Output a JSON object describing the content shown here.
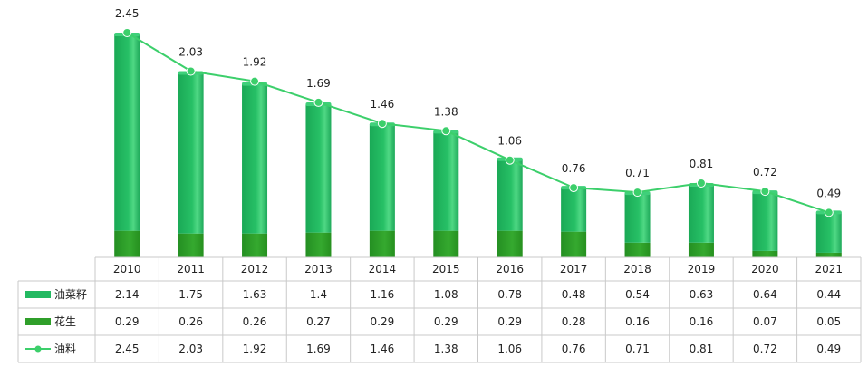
{
  "colors": {
    "rapeseed": "#23b961",
    "peanut": "#2f9f2a",
    "oil_line": "#3ccf6b",
    "grid": "#c9c9c9"
  },
  "chart_data": {
    "type": "bar",
    "stacked": true,
    "categories": [
      "2010",
      "2011",
      "2012",
      "2013",
      "2014",
      "2015",
      "2016",
      "2017",
      "2018",
      "2019",
      "2020",
      "2021"
    ],
    "series": [
      {
        "name": "油菜籽",
        "type": "bar",
        "values": [
          2.14,
          1.75,
          1.63,
          1.4,
          1.16,
          1.08,
          0.78,
          0.48,
          0.54,
          0.63,
          0.64,
          0.44
        ]
      },
      {
        "name": "花生",
        "type": "bar",
        "values": [
          0.29,
          0.26,
          0.26,
          0.27,
          0.29,
          0.29,
          0.29,
          0.28,
          0.16,
          0.16,
          0.07,
          0.05
        ]
      },
      {
        "name": "油料",
        "type": "line",
        "values": [
          2.45,
          2.03,
          1.92,
          1.69,
          1.46,
          1.38,
          1.06,
          0.76,
          0.71,
          0.81,
          0.72,
          0.49
        ]
      }
    ],
    "line_labels": [
      "2.45",
      "2.03",
      "1.92",
      "1.69",
      "1.46",
      "1.38",
      "1.06",
      "0.76",
      "0.71",
      "0.81",
      "0.72",
      "0.49"
    ],
    "table_rows": [
      {
        "name": "油菜籽",
        "cells": [
          "2.14",
          "1.75",
          "1.63",
          "1.4",
          "1.16",
          "1.08",
          "0.78",
          "0.48",
          "0.54",
          "0.63",
          "0.64",
          "0.44"
        ]
      },
      {
        "name": "花生",
        "cells": [
          "0.29",
          "0.26",
          "0.26",
          "0.27",
          "0.29",
          "0.29",
          "0.29",
          "0.28",
          "0.16",
          "0.16",
          "0.07",
          "0.05"
        ]
      },
      {
        "name": "油料",
        "cells": [
          "2.45",
          "2.03",
          "1.92",
          "1.69",
          "1.46",
          "1.38",
          "1.06",
          "0.76",
          "0.71",
          "0.81",
          "0.72",
          "0.49"
        ]
      }
    ],
    "ylim": [
      0,
      2.6
    ],
    "legend": "data-table"
  }
}
